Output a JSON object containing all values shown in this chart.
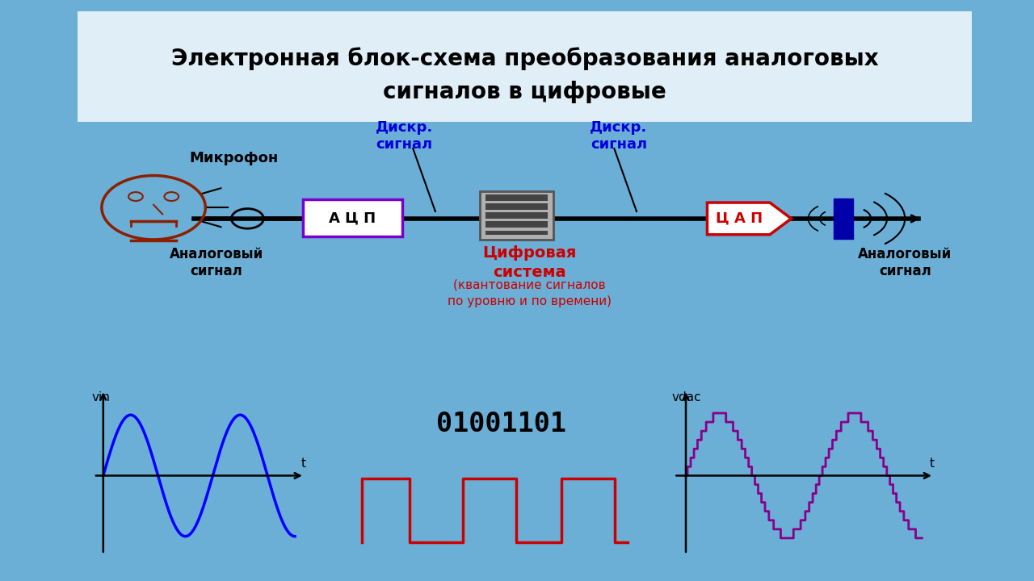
{
  "title_line1": "Электронная блок-схема преобразования аналоговых",
  "title_line2": "сигналов в цифровые",
  "bg_outer": "#6baed6",
  "bg_inner": "#f5faff",
  "bg_title": "#e0eef8",
  "title_color": "#000000",
  "label_mikrophone": "Микрофон",
  "label_analog_left": "Аналоговый\nсигнал",
  "label_diskr1": "Дискр.\nсигнал",
  "label_diskr2": "Дискр.\nсигнал",
  "label_acp": "А Ц П",
  "label_cap": "Ц А П",
  "label_digital_system": "Цифровая\nсистема",
  "label_digital_sub": "(квантование сигналов\nпо уровню и по времени)",
  "label_analog_right": "Аналоговый\nсигнал",
  "label_vin": "vin",
  "label_vdac": "vdac",
  "label_t": "t",
  "label_binary": "01001101",
  "acp_color": "#7700cc",
  "cap_color": "#cc0000",
  "digital_system_color": "#cc0000",
  "diskr_color": "#0000dd",
  "analog_wave_color": "#0000ff",
  "digital_wave_color": "#cc0000",
  "dac_wave_color": "#880088"
}
